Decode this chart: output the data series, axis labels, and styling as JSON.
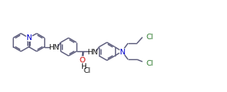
{
  "bg_color": "#ffffff",
  "line_color": "#5a5a7a",
  "text_color": "#1a1a1a",
  "N_color": "#0000cc",
  "O_color": "#cc0000",
  "Cl_color": "#2d7a2d",
  "lw": 1.0,
  "fig_width": 2.82,
  "fig_height": 1.16,
  "xlim": [
    0,
    10.5
  ],
  "ylim": [
    0,
    4.0
  ]
}
